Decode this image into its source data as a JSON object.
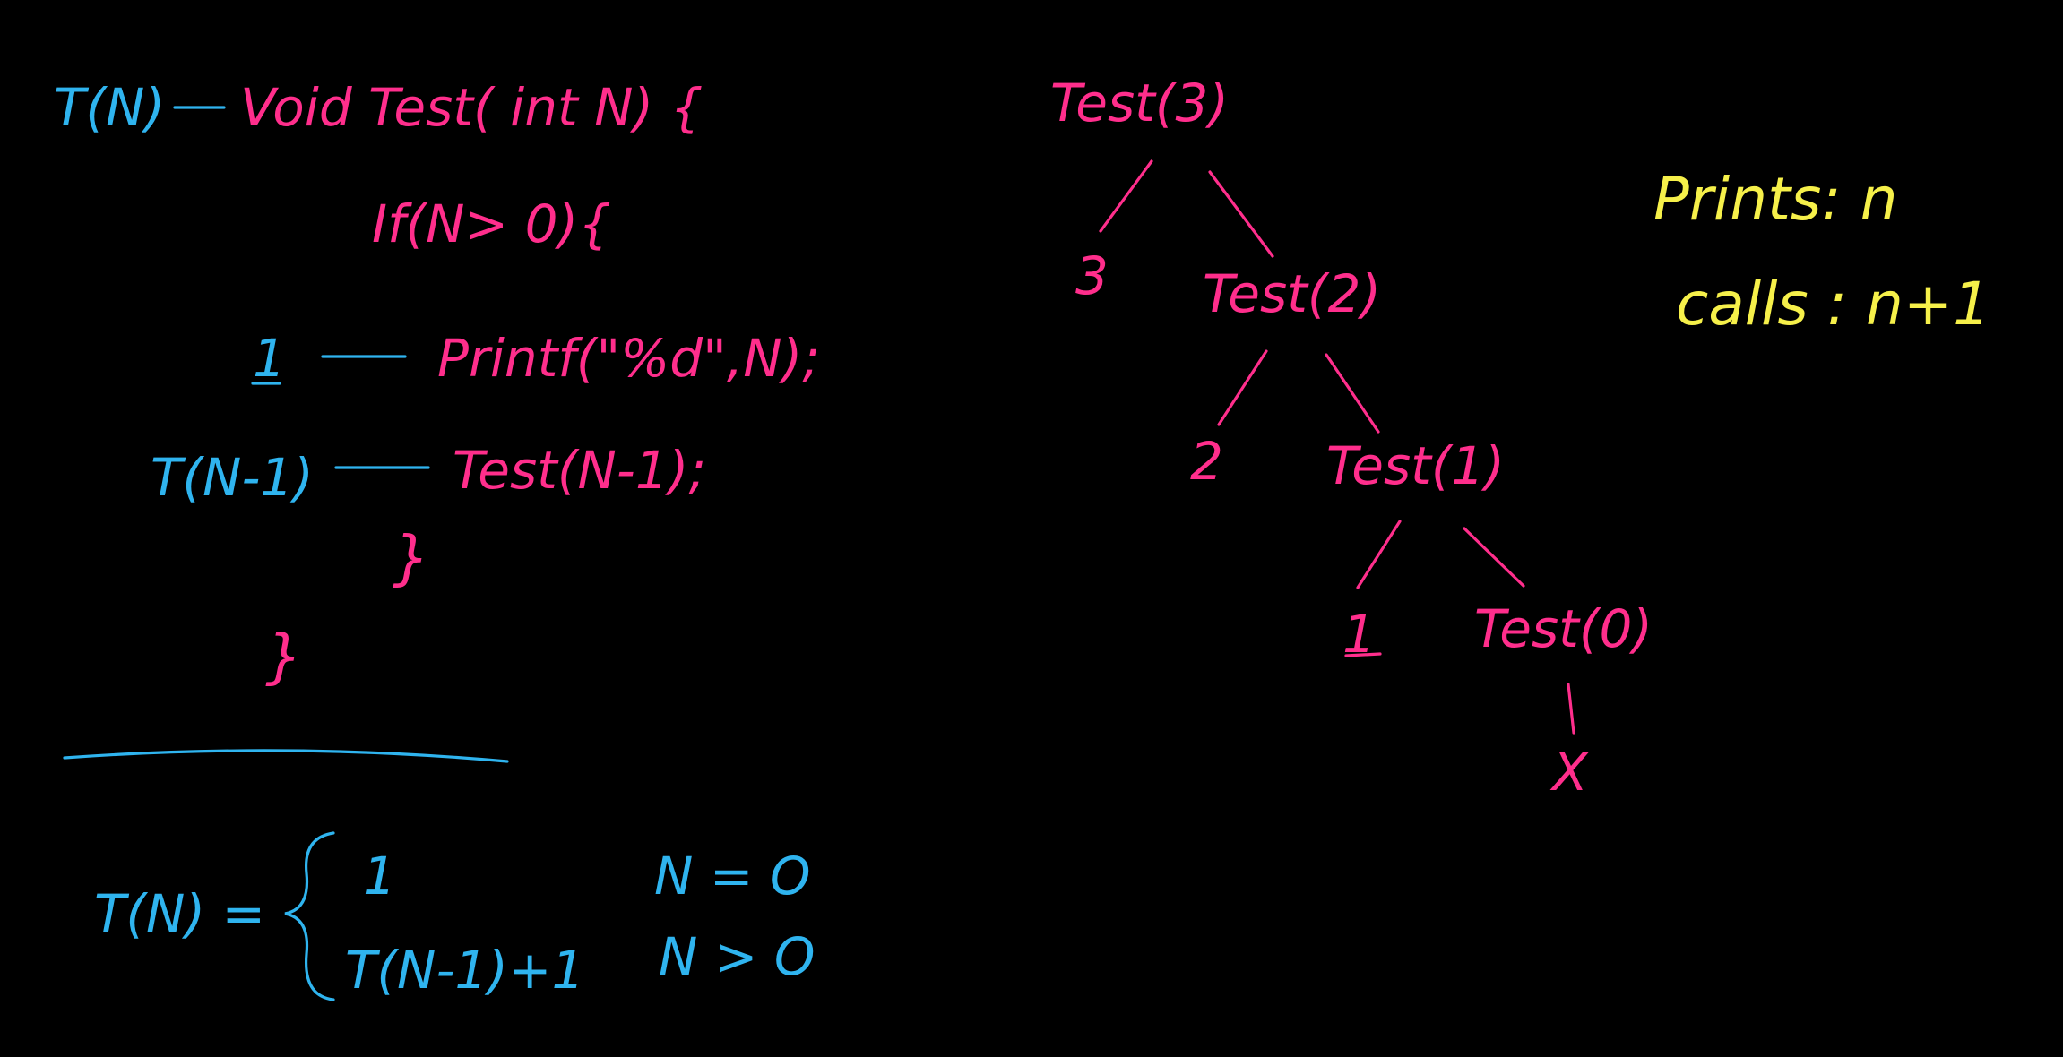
{
  "colors": {
    "background": "#000000",
    "code": "#ff2e8c",
    "recurrence": "#2fb4ef",
    "summary": "#f6f04a"
  },
  "code": {
    "tn_label": "T(N)",
    "signature": "Void Test( int N) {",
    "if_line": "If(N> 0){",
    "print_cost": "1",
    "print_line": "Printf(\"%d\",N);",
    "call_cost": "T(N-1)",
    "call_line": "Test(N-1);",
    "inner_brace": "}",
    "outer_brace": "}"
  },
  "recurrence": {
    "lhs": "T(N) =",
    "case1_value": "1",
    "case1_condition": "N = O",
    "case2_value": "T(N-1)+1",
    "case2_condition": "N > O"
  },
  "tree": {
    "node_test3": "Test(3)",
    "leaf3": "3",
    "node_test2": "Test(2)",
    "leaf2": "2",
    "node_test1": "Test(1)",
    "leaf1": "1",
    "node_test0": "Test(0)",
    "leaf0": "X"
  },
  "summary": {
    "prints": "Prints: n",
    "calls": "calls : n+1"
  }
}
